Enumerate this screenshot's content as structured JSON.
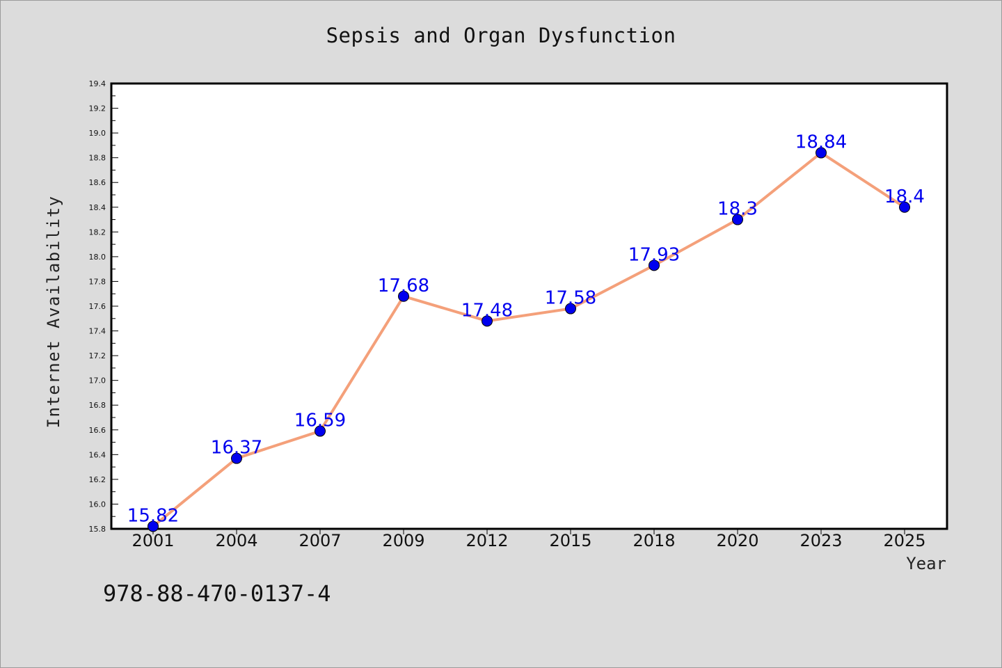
{
  "chart_data": {
    "type": "line",
    "title": "Sepsis and Organ Dysfunction",
    "xlabel": "Year",
    "ylabel": "Internet Availability",
    "categories": [
      "2001",
      "2004",
      "2007",
      "2009",
      "2012",
      "2015",
      "2018",
      "2020",
      "2023",
      "2025"
    ],
    "series": [
      {
        "values": [
          15.82,
          16.37,
          16.59,
          17.68,
          17.48,
          17.58,
          17.93,
          18.3,
          18.84,
          18.4
        ],
        "data_labels": [
          "15.82",
          "16.37",
          "16.59",
          "17.68",
          "17.48",
          "17.58",
          "17.93",
          "18.3",
          "18.84",
          "18.4"
        ],
        "line_color": "#f4a07a",
        "marker_color": "#0000ee"
      }
    ],
    "ylim": [
      15.8,
      19.4
    ],
    "yticks": [
      "15.8",
      "16.0",
      "16.2",
      "16.4",
      "16.6",
      "16.8",
      "17.0",
      "17.2",
      "17.4",
      "17.6",
      "17.8",
      "18.0",
      "18.2",
      "18.4",
      "18.6",
      "18.8",
      "19.0",
      "19.2",
      "19.4"
    ],
    "grid": false,
    "legend": "none",
    "plot_background": "#ffffff",
    "figure_background": "#dcdcdc"
  },
  "footer": {
    "code": "978-88-470-0137-4"
  }
}
